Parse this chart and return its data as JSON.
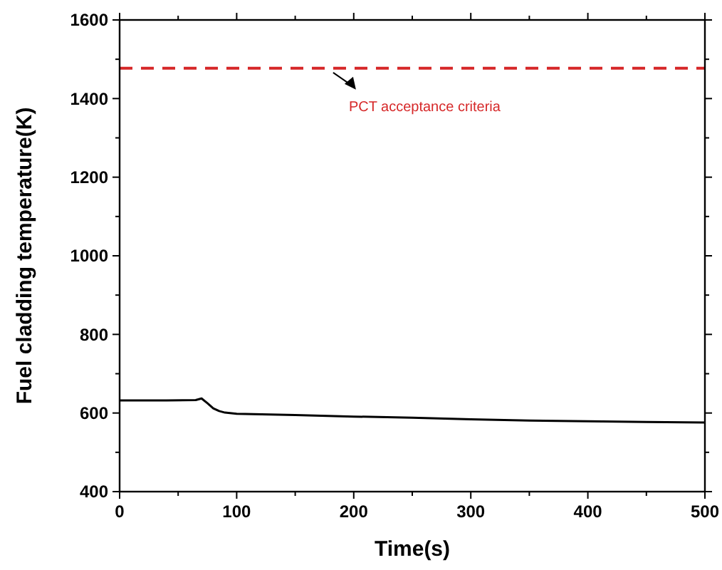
{
  "chart_data": {
    "type": "line",
    "xlabel": "Time(s)",
    "ylabel": "Fuel cladding temperature(K)",
    "xlim": [
      0,
      500
    ],
    "ylim": [
      400,
      1600
    ],
    "xticks": [
      0,
      {
        "value": 50,
        "label": null
      },
      100,
      {
        "value": 150,
        "label": null
      },
      200,
      {
        "value": 250,
        "label": null
      },
      300,
      {
        "value": 350,
        "label": null
      },
      400,
      {
        "value": 450,
        "label": null
      },
      500
    ],
    "yticks": [
      400,
      {
        "value": 500,
        "label": null
      },
      600,
      {
        "value": 700,
        "label": null
      },
      800,
      {
        "value": 900,
        "label": null
      },
      1000,
      {
        "value": 1100,
        "label": null
      },
      1200,
      {
        "value": 1300,
        "label": null
      },
      1400,
      {
        "value": 1500,
        "label": null
      },
      1600
    ],
    "grid": false,
    "line_style": "solid",
    "series": [
      {
        "color": "#000000",
        "x": [
          0,
          20,
          40,
          65,
          70,
          75,
          80,
          85,
          90,
          100,
          150,
          200,
          250,
          300,
          350,
          400,
          450,
          500
        ],
        "values": [
          632,
          632,
          632,
          633,
          637,
          625,
          612,
          605,
          601,
          598,
          595,
          591,
          588,
          584,
          581,
          579,
          577,
          576
        ]
      }
    ],
    "ref_lines": [
      {
        "axis": "y",
        "value": 1477,
        "label": "PCT acceptance criteria",
        "color": "#d62728",
        "line_style": "dashed"
      }
    ]
  }
}
